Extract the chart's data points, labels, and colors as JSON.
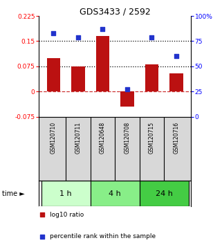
{
  "title": "GDS3433 / 2592",
  "samples": [
    "GSM120710",
    "GSM120711",
    "GSM120648",
    "GSM120708",
    "GSM120715",
    "GSM120716"
  ],
  "log10_ratio": [
    0.1,
    0.075,
    0.165,
    -0.045,
    0.08,
    0.055
  ],
  "percentile_rank": [
    83,
    79,
    87,
    27,
    79,
    60
  ],
  "ylim_left": [
    -0.075,
    0.225
  ],
  "ylim_right": [
    0,
    100
  ],
  "yticks_left": [
    -0.075,
    0,
    0.075,
    0.15,
    0.225
  ],
  "yticks_right": [
    0,
    25,
    50,
    75,
    100
  ],
  "ytick_labels_left": [
    "-0.075",
    "0",
    "0.075",
    "0.15",
    "0.225"
  ],
  "ytick_labels_right": [
    "0",
    "25",
    "50",
    "75",
    "100%"
  ],
  "hlines_dotted": [
    0.075,
    0.15
  ],
  "hline_dashed": 0,
  "bar_color": "#BB1111",
  "dot_color": "#2233CC",
  "time_groups": [
    {
      "label": "1 h",
      "start": 0,
      "end": 2,
      "color": "#CCFFCC"
    },
    {
      "label": "4 h",
      "start": 2,
      "end": 4,
      "color": "#88EE88"
    },
    {
      "label": "24 h",
      "start": 4,
      "end": 6,
      "color": "#44CC44"
    }
  ],
  "legend_items": [
    {
      "label": "log10 ratio",
      "color": "#BB1111"
    },
    {
      "label": "percentile rank within the sample",
      "color": "#2233CC"
    }
  ],
  "time_label": "time ►",
  "bar_width": 0.55
}
